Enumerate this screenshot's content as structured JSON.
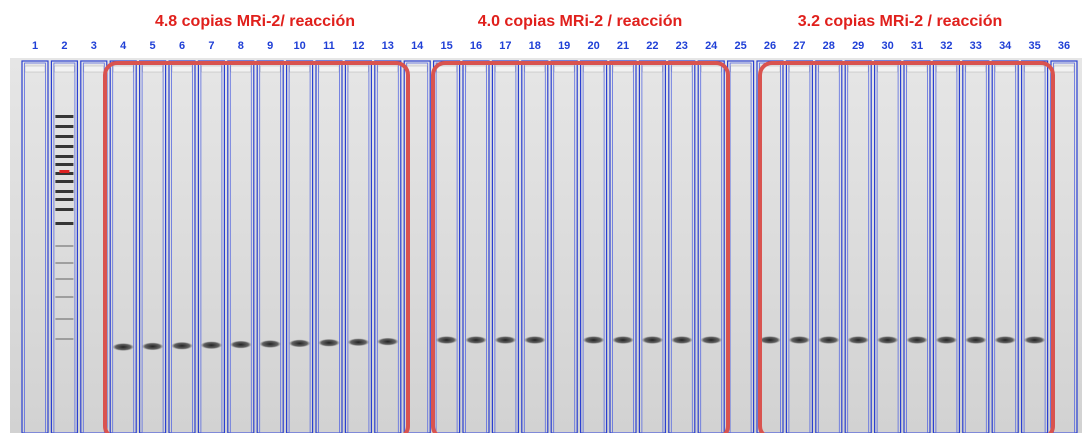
{
  "groups": [
    {
      "title": "4.8 copias MRi-2/ reacción"
    },
    {
      "title": "4.0 copias MRi-2 / reacción"
    },
    {
      "title": "3.2 copias MRi-2 / reacción"
    }
  ],
  "lane_labels": [
    "1",
    "2",
    "3",
    "4",
    "5",
    "6",
    "7",
    "8",
    "9",
    "10",
    "11",
    "12",
    "13",
    "14",
    "15",
    "16",
    "17",
    "18",
    "19",
    "20",
    "21",
    "22",
    "23",
    "24",
    "25",
    "26",
    "27",
    "28",
    "29",
    "30",
    "31",
    "32",
    "33",
    "34",
    "35",
    "36"
  ]
}
